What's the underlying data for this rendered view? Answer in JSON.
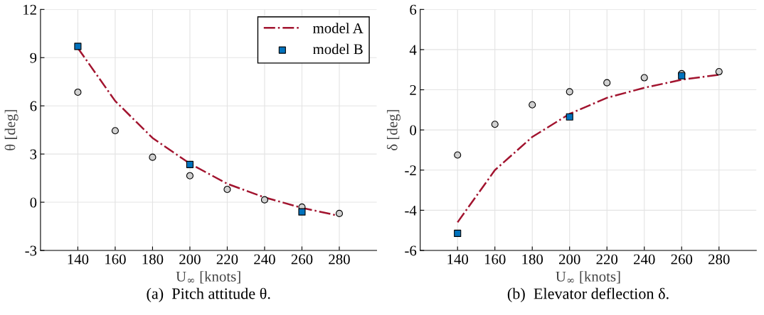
{
  "chart_data": [
    {
      "type": "scatter",
      "title": "(a)  Pitch attitude θ.",
      "xlabel": "U$_{∞}$ [knots]",
      "ylabel": "θ [deg]",
      "xlim": [
        120,
        300
      ],
      "xticks": [
        140,
        160,
        180,
        200,
        220,
        240,
        260,
        280
      ],
      "ylim": [
        -3,
        12
      ],
      "yticks": [
        -3,
        0,
        3,
        6,
        9,
        12
      ],
      "grid": true,
      "legend": "top right",
      "series": [
        {
          "marker": "circle",
          "color": "#d0d0d0",
          "x": [
            140,
            160,
            180,
            200,
            220,
            240,
            260,
            280
          ],
          "values": [
            6.85,
            4.45,
            2.8,
            1.65,
            0.8,
            0.15,
            -0.3,
            -0.7
          ]
        },
        {
          "type": "line",
          "name": "model A",
          "color": "#a2142f",
          "line_style": "dashdot",
          "marker": "none",
          "x": [
            140,
            160,
            180,
            200,
            220,
            240,
            260,
            280
          ],
          "values": [
            9.6,
            6.3,
            4.0,
            2.4,
            1.15,
            0.3,
            -0.35,
            -0.85
          ]
        },
        {
          "name": "model B",
          "marker": "square",
          "color": "#0072bd",
          "x": [
            140,
            200,
            260
          ],
          "values": [
            9.7,
            2.35,
            -0.6
          ]
        }
      ]
    },
    {
      "type": "scatter",
      "title": "(b)  Elevator deflection δ.",
      "xlabel": "U$_{∞}$ [knots]",
      "ylabel": "δ [deg]",
      "xlim": [
        120,
        300
      ],
      "xticks": [
        140,
        160,
        180,
        200,
        220,
        240,
        260,
        280
      ],
      "ylim": [
        -6,
        6
      ],
      "yticks": [
        -6,
        -4,
        -2,
        0,
        2,
        4,
        6
      ],
      "grid": true,
      "series": [
        {
          "marker": "circle",
          "color": "#d0d0d0",
          "x": [
            140,
            160,
            180,
            200,
            220,
            240,
            260,
            280
          ],
          "values": [
            -1.25,
            0.28,
            1.25,
            1.9,
            2.35,
            2.6,
            2.8,
            2.9
          ]
        },
        {
          "type": "line",
          "color": "#a2142f",
          "line_style": "dashdot",
          "marker": "none",
          "x": [
            140,
            160,
            180,
            200,
            220,
            240,
            260,
            280
          ],
          "values": [
            -4.6,
            -2.0,
            -0.35,
            0.8,
            1.6,
            2.1,
            2.5,
            2.75
          ]
        },
        {
          "marker": "square",
          "color": "#0072bd",
          "x": [
            140,
            200,
            260
          ],
          "values": [
            -5.15,
            0.65,
            2.7
          ]
        }
      ]
    }
  ]
}
